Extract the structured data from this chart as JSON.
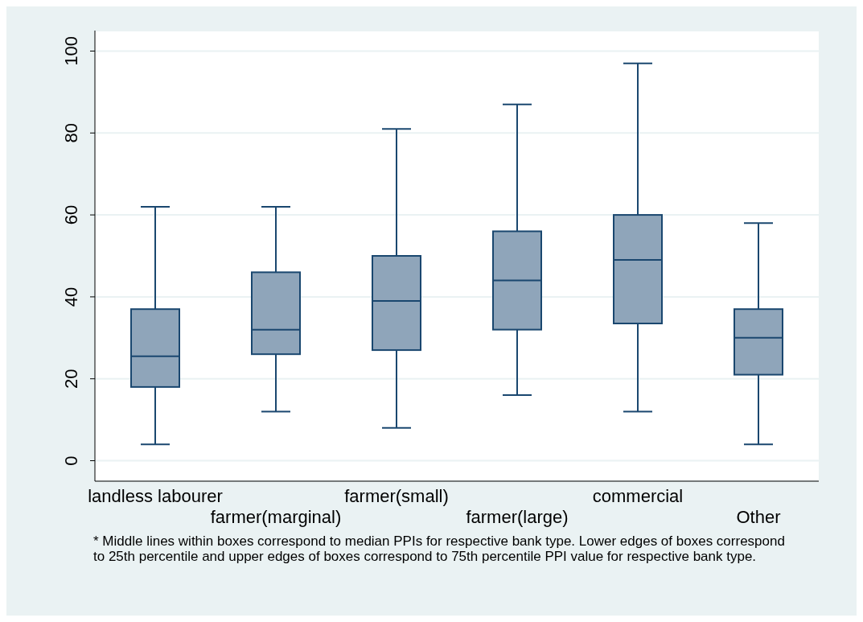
{
  "chart_data": {
    "type": "box",
    "categories": [
      "landless labourer",
      "farmer(marginal)",
      "farmer(small)",
      "farmer(large)",
      "commercial",
      "Other"
    ],
    "boxes": [
      {
        "low": 4,
        "q1": 18,
        "median": 25.5,
        "q3": 37,
        "high": 62
      },
      {
        "low": 12,
        "q1": 26,
        "median": 32,
        "q3": 46,
        "high": 62
      },
      {
        "low": 8,
        "q1": 27,
        "median": 39,
        "q3": 50,
        "high": 81
      },
      {
        "low": 16,
        "q1": 32,
        "median": 44,
        "q3": 56,
        "high": 87
      },
      {
        "low": 12,
        "q1": 33.5,
        "median": 49,
        "q3": 60,
        "high": 97
      },
      {
        "low": 4,
        "q1": 21,
        "median": 30,
        "q3": 37,
        "high": 58
      }
    ],
    "color": "#8fa5ba",
    "ylim": [
      -5,
      105
    ],
    "yticks": [
      0,
      20,
      40,
      60,
      80,
      100
    ],
    "grid": "y",
    "annotations": [
      "* Middle lines within boxes correspond to median PPIs for respective bank type. Lower edges of boxes correspond to 25th percentile and upper edges of boxes correspond to 75th percentile PPI value for respective bank type."
    ]
  }
}
